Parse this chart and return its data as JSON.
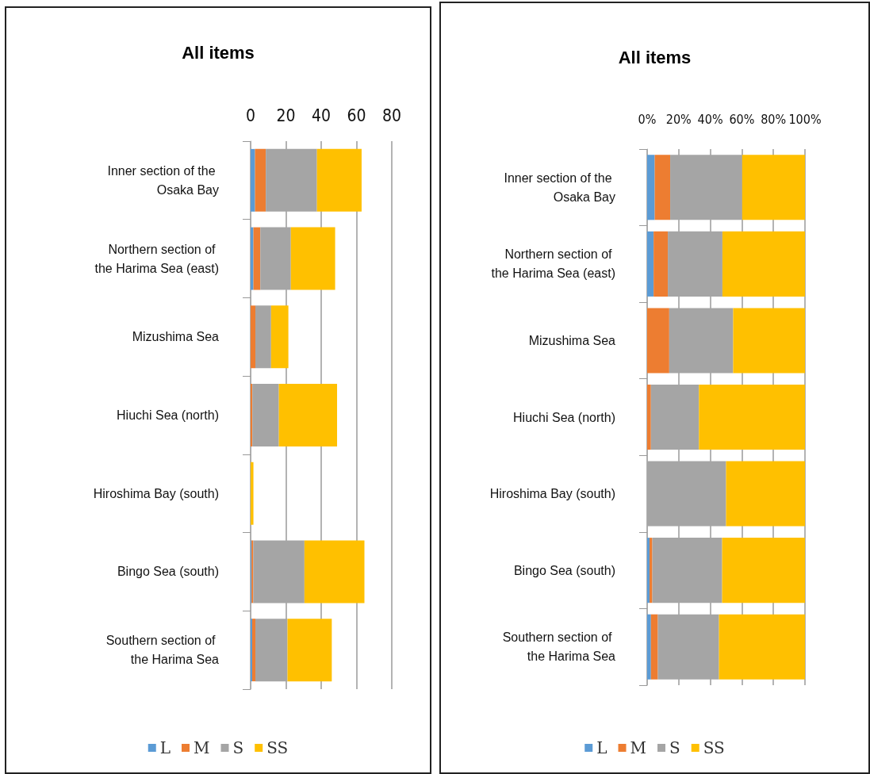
{
  "chart_data": [
    {
      "type": "bar",
      "title": "All items",
      "orientation": "horizontal",
      "stacked": true,
      "grid": "x",
      "legend": "bottom",
      "categories": [
        "Inner section of the Osaka Bay",
        "Northern section of the Harima Sea (east)",
        "Mizushima Sea",
        "Hiuchi Sea (north)",
        "Hiroshima Bay (south)",
        "Bingo Sea (south)",
        "Southern section of the Harima Sea"
      ],
      "xlim": [
        0,
        80
      ],
      "xticks": [
        0,
        20,
        40,
        60,
        80
      ],
      "series": [
        {
          "name": "L",
          "color": "#5b9bd5",
          "values": [
            2.5,
            1.6,
            0,
            0,
            0,
            0.5,
            0.9
          ]
        },
        {
          "name": "M",
          "color": "#ed7d31",
          "values": [
            6.1,
            3.9,
            2.7,
            1,
            0,
            1,
            1.8
          ]
        },
        {
          "name": "S",
          "color": "#a5a5a5",
          "values": [
            29,
            17.3,
            8.9,
            15,
            null,
            29,
            18.2
          ]
        },
        {
          "name": "SS",
          "color": "#ffc000",
          "values": [
            25.3,
            25.1,
            9.8,
            33,
            1.6,
            34,
            25.1
          ]
        }
      ]
    },
    {
      "type": "bar",
      "title": "All items",
      "orientation": "horizontal",
      "stacked": true,
      "grid": "x",
      "legend": "bottom",
      "categories": [
        "Inner section of the Osaka Bay",
        "Northern section of the Harima Sea (east)",
        "Mizushima Sea",
        "Hiuchi Sea (north)",
        "Hiroshima Bay (south)",
        "Bingo Sea (south)",
        "Southern section of the Harima Sea"
      ],
      "xlim": [
        0,
        100
      ],
      "xticks": [
        {
          "value": 0,
          "label": "0%"
        },
        {
          "value": 20,
          "label": "20%"
        },
        {
          "value": 40,
          "label": "40%"
        },
        {
          "value": 60,
          "label": "60%"
        },
        {
          "value": 80,
          "label": "80%"
        },
        {
          "value": 100,
          "label": "100%"
        }
      ],
      "series": [
        {
          "name": "L",
          "color": "#5b9bd5",
          "values": [
            4.8,
            4.1,
            0,
            0,
            0,
            1.5,
            2.4
          ]
        },
        {
          "name": "M",
          "color": "#ed7d31",
          "values": [
            9.8,
            9,
            14,
            2.4,
            0,
            1.8,
            4.4
          ]
        },
        {
          "name": "S",
          "color": "#a5a5a5",
          "values": [
            45.6,
            34.6,
            40.5,
            30.4,
            50,
            44.2,
            38.7
          ]
        },
        {
          "name": "SS",
          "color": "#ffc000",
          "values": [
            39.8,
            52.3,
            45.5,
            67.2,
            50,
            52.5,
            54.5
          ]
        }
      ]
    }
  ]
}
